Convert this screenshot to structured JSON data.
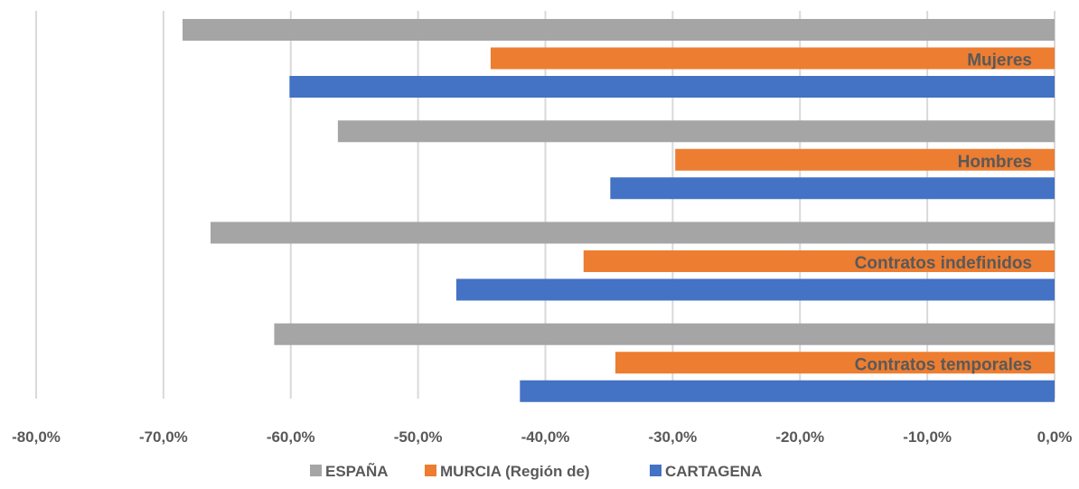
{
  "chart_data": {
    "type": "bar",
    "orientation": "horizontal",
    "title": "",
    "xlabel": "",
    "ylabel": "",
    "categories": [
      "Mujeres",
      "Hombres",
      "Contratos indefinidos",
      "Contratos temporales"
    ],
    "series": [
      {
        "name": "ESPAÑA",
        "color": "#a5a5a5",
        "values": [
          -0.685,
          -0.563,
          -0.663,
          -0.613
        ]
      },
      {
        "name": "MURCIA (Región de)",
        "color": "#ed7d31",
        "values": [
          -0.443,
          -0.298,
          -0.37,
          -0.345
        ]
      },
      {
        "name": "CARTAGENA",
        "color": "#4472c4",
        "values": [
          -0.601,
          -0.349,
          -0.47,
          -0.42
        ]
      }
    ],
    "xlim": [
      -0.8,
      0
    ],
    "xticks": [
      -0.8,
      -0.7,
      -0.6,
      -0.5,
      -0.4,
      -0.3,
      -0.2,
      -0.1,
      0
    ],
    "xtick_labels": [
      "-80,0%",
      "-70,0%",
      "-60,0%",
      "-50,0%",
      "-40,0%",
      "-30,0%",
      "-20,0%",
      "-10,0%",
      "0,0%"
    ],
    "grid": true,
    "legend_position": "bottom"
  }
}
